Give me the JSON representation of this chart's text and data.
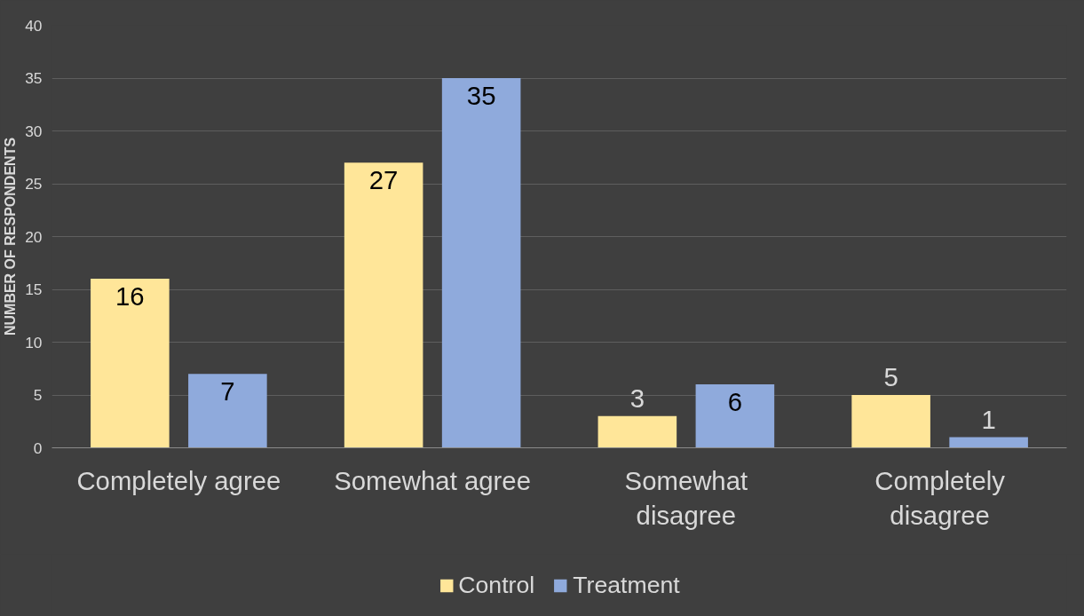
{
  "chart_data": {
    "type": "bar",
    "ylabel": "NUMBER OF RESPONDENTS",
    "categories": [
      "Completely agree",
      "Somewhat agree",
      "Somewhat disagree",
      "Completely disagree"
    ],
    "series": [
      {
        "name": "Control",
        "color": "#ffe699",
        "values": [
          16,
          27,
          3,
          5
        ]
      },
      {
        "name": "Treatment",
        "color": "#8faadc",
        "values": [
          7,
          35,
          6,
          1
        ]
      }
    ],
    "ylim": [
      0,
      40
    ],
    "yticks": [
      0,
      5,
      10,
      15,
      20,
      25,
      30,
      35,
      40
    ],
    "grid": "y",
    "legend": "bottom",
    "data_labels": true
  }
}
